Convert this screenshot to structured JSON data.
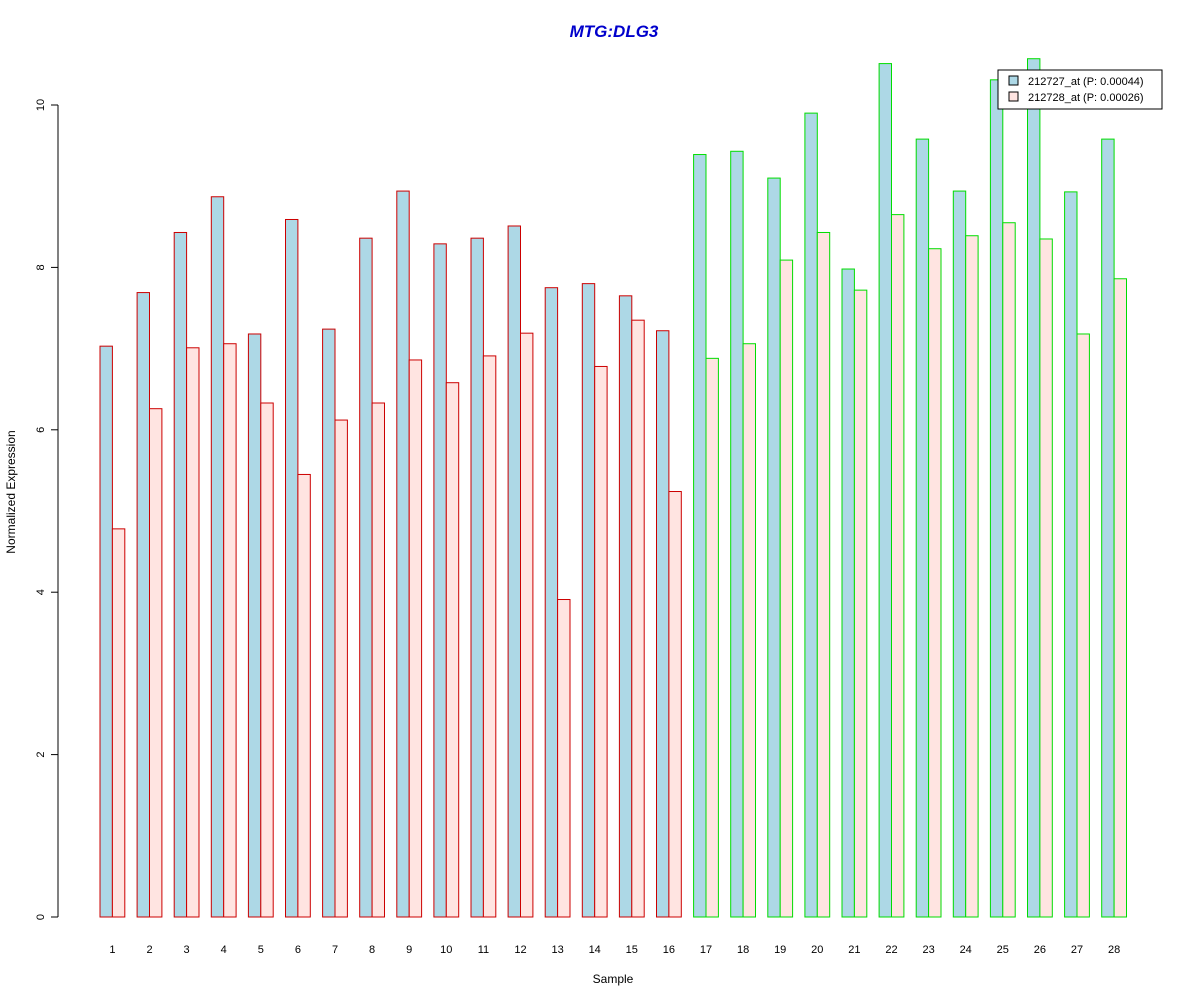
{
  "chart_data": {
    "type": "bar",
    "title": "MTG:DLG3",
    "xlabel": "Sample",
    "ylabel": "Normalized Expression",
    "ylim": [
      0,
      10.5
    ],
    "yticks": [
      0,
      2,
      4,
      6,
      8,
      10
    ],
    "categories": [
      "1",
      "2",
      "3",
      "4",
      "5",
      "6",
      "7",
      "8",
      "9",
      "10",
      "11",
      "12",
      "13",
      "14",
      "15",
      "16",
      "17",
      "18",
      "19",
      "20",
      "21",
      "22",
      "23",
      "24",
      "25",
      "26",
      "27",
      "28"
    ],
    "group_border_colors": [
      "#cc0000",
      "#cc0000",
      "#cc0000",
      "#cc0000",
      "#cc0000",
      "#cc0000",
      "#cc0000",
      "#cc0000",
      "#cc0000",
      "#cc0000",
      "#cc0000",
      "#cc0000",
      "#cc0000",
      "#cc0000",
      "#cc0000",
      "#cc0000",
      "#00dd00",
      "#00dd00",
      "#00dd00",
      "#00dd00",
      "#00dd00",
      "#00dd00",
      "#00dd00",
      "#00dd00",
      "#00dd00",
      "#00dd00",
      "#00dd00",
      "#00dd00"
    ],
    "series": [
      {
        "name": "212727_at (P: 0.00044)",
        "fill": "#add8e6",
        "values": [
          7.03,
          7.69,
          8.43,
          8.87,
          7.18,
          8.59,
          7.24,
          8.36,
          8.94,
          8.29,
          8.36,
          8.51,
          7.75,
          7.8,
          7.65,
          7.22,
          9.39,
          9.43,
          9.1,
          9.9,
          7.98,
          10.51,
          9.58,
          8.94,
          10.31,
          10.57,
          8.93,
          9.58
        ]
      },
      {
        "name": "212728_at (P: 0.00026)",
        "fill": "#ffe4e1",
        "values": [
          4.78,
          6.26,
          7.01,
          7.06,
          6.33,
          5.45,
          6.12,
          6.33,
          6.86,
          6.58,
          6.91,
          7.19,
          3.91,
          6.78,
          7.35,
          5.24,
          6.88,
          7.06,
          8.09,
          8.43,
          7.72,
          8.65,
          8.23,
          8.39,
          8.55,
          8.35,
          7.18,
          7.86
        ]
      }
    ],
    "legend_position": "top-right",
    "grid": false
  }
}
